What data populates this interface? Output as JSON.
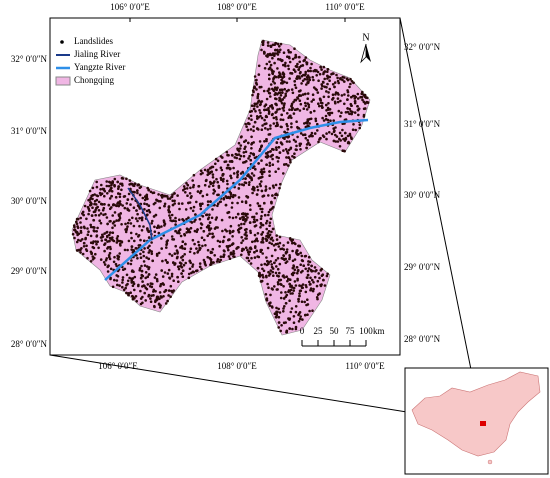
{
  "map": {
    "top_labels": [
      "106° 0′0″E",
      "108° 0′0″E",
      "110° 0′0″E"
    ],
    "bottom_labels": [
      "106° 0′0″E",
      "108° 0′0″E",
      "110° 0′0″E"
    ],
    "left_labels": [
      "32° 0′0″N",
      "31° 0′0″N",
      "30° 0′0″N",
      "29° 0′0″N",
      "28° 0′0″N"
    ],
    "right_labels": [
      "32° 0′0″N",
      "31° 0′0″N",
      "30° 0′0″N",
      "29° 0′0″N",
      "28° 0′0″N"
    ],
    "legend": [
      "Landslides",
      "Jialing River",
      "Yangzte River",
      "Chongqing"
    ],
    "north": "N",
    "scale": {
      "ticks": [
        "0",
        "25",
        "50",
        "75",
        "100"
      ],
      "unit": "km"
    }
  }
}
